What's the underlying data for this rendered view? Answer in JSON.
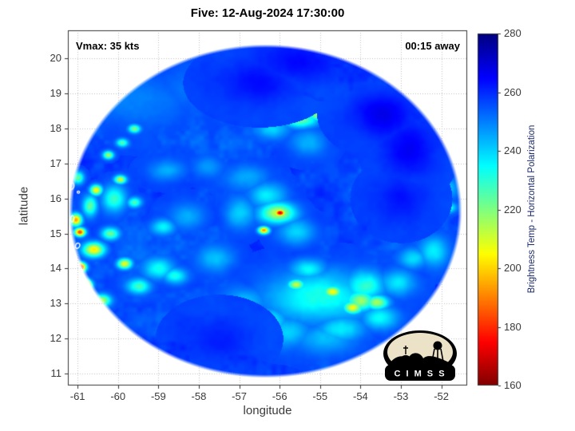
{
  "title": "Five: 12-Aug-2024 17:30:00",
  "annotations": {
    "vmax": "Vmax: 35 kts",
    "eta": "00:15 away"
  },
  "logo": {
    "text": "C I M S S"
  },
  "chart_data": {
    "type": "heatmap",
    "title": "Five: 12-Aug-2024 17:30:00",
    "xlabel": "longitude",
    "ylabel": "latitude",
    "x_ticks": [
      -61,
      -60,
      -59,
      -58,
      -57,
      -56,
      -55,
      -54,
      -53,
      -52
    ],
    "y_ticks": [
      11,
      12,
      13,
      14,
      15,
      16,
      17,
      18,
      19,
      20
    ],
    "x_range": [
      -61.24,
      -51.36
    ],
    "y_range": [
      10.66,
      20.8
    ],
    "grid": true,
    "colorbar": {
      "label": "Brightness Temp - Horizontal Polarization",
      "min": 160,
      "max": 280,
      "ticks": [
        160,
        180,
        200,
        220,
        240,
        260,
        280
      ],
      "colormap": "jet-reversed"
    },
    "swath": {
      "center_lon": -56.36,
      "center_lat": 15.65,
      "radius_x_deg": 4.86,
      "radius_y_deg": 4.76
    },
    "base_temp_k": 257,
    "noise": {
      "seed": 7,
      "amplitude": 7
    },
    "features": [
      [
        -60.95,
        14.05,
        0.1,
        0.09,
        168
      ],
      [
        -60.85,
        13.55,
        0.12,
        0.1,
        165
      ],
      [
        -61.05,
        13.3,
        0.08,
        0.08,
        182
      ],
      [
        -60.95,
        15.05,
        0.09,
        0.08,
        182
      ],
      [
        -61.05,
        15.4,
        0.1,
        0.12,
        198
      ],
      [
        -60.55,
        16.25,
        0.1,
        0.1,
        205
      ],
      [
        -60.25,
        17.25,
        0.09,
        0.08,
        215
      ],
      [
        -59.95,
        16.55,
        0.1,
        0.08,
        212
      ],
      [
        -60.6,
        14.55,
        0.18,
        0.14,
        200
      ],
      [
        -59.85,
        14.15,
        0.12,
        0.1,
        206
      ],
      [
        -60.2,
        15.0,
        0.15,
        0.12,
        220
      ],
      [
        -59.6,
        15.9,
        0.12,
        0.1,
        226
      ],
      [
        -60.4,
        13.1,
        0.15,
        0.12,
        216
      ],
      [
        -59.5,
        13.5,
        0.2,
        0.15,
        228
      ],
      [
        -59.0,
        14.0,
        0.25,
        0.2,
        233
      ],
      [
        -60.1,
        16.0,
        0.2,
        0.25,
        228
      ],
      [
        -60.7,
        15.8,
        0.12,
        0.2,
        224
      ],
      [
        -58.6,
        13.8,
        0.2,
        0.15,
        232
      ],
      [
        -58.9,
        15.2,
        0.2,
        0.15,
        236
      ],
      [
        -59.6,
        18.0,
        0.1,
        0.08,
        222
      ],
      [
        -59.9,
        17.6,
        0.1,
        0.08,
        226
      ],
      [
        -60.9,
        12.6,
        0.15,
        0.12,
        225
      ],
      [
        -61.0,
        16.6,
        0.1,
        0.12,
        218
      ],
      [
        -56.0,
        15.6,
        0.09,
        0.07,
        168
      ],
      [
        -56.05,
        15.6,
        0.3,
        0.2,
        212
      ],
      [
        -56.4,
        15.1,
        0.09,
        0.07,
        192
      ],
      [
        -56.3,
        16.1,
        0.3,
        0.25,
        236
      ],
      [
        -57.0,
        15.6,
        0.25,
        0.3,
        241
      ],
      [
        -55.6,
        15.05,
        0.3,
        0.25,
        239
      ],
      [
        -56.8,
        16.6,
        0.35,
        0.25,
        244
      ],
      [
        -52.1,
        15.75,
        0.22,
        0.1,
        182
      ],
      [
        -52.4,
        15.85,
        0.3,
        0.18,
        222
      ],
      [
        -52.0,
        16.3,
        0.25,
        0.2,
        236
      ],
      [
        -52.2,
        14.5,
        0.25,
        0.3,
        236
      ],
      [
        -52.6,
        17.0,
        0.3,
        0.25,
        243
      ],
      [
        -54.7,
        18.5,
        0.1,
        0.07,
        174
      ],
      [
        -54.95,
        18.4,
        0.25,
        0.12,
        212
      ],
      [
        -55.5,
        18.25,
        0.3,
        0.15,
        224
      ],
      [
        -56.2,
        18.0,
        0.3,
        0.2,
        239
      ],
      [
        -54.2,
        18.25,
        0.2,
        0.14,
        230
      ],
      [
        -53.85,
        17.9,
        0.25,
        0.2,
        241
      ],
      [
        -55.9,
        18.55,
        0.3,
        0.15,
        233
      ],
      [
        -55.3,
        17.6,
        0.3,
        0.25,
        243
      ],
      [
        -55.0,
        13.2,
        0.9,
        0.5,
        232
      ],
      [
        -54.7,
        13.35,
        0.15,
        0.11,
        206
      ],
      [
        -54.2,
        12.9,
        0.16,
        0.12,
        208
      ],
      [
        -55.6,
        13.55,
        0.14,
        0.1,
        212
      ],
      [
        -53.6,
        13.05,
        0.2,
        0.14,
        215
      ],
      [
        -56.3,
        12.5,
        0.3,
        0.25,
        233
      ],
      [
        -53.1,
        13.6,
        0.3,
        0.25,
        236
      ],
      [
        -52.7,
        14.3,
        0.25,
        0.2,
        239
      ],
      [
        -56.9,
        13.0,
        0.35,
        0.3,
        239
      ],
      [
        -55.8,
        12.2,
        0.4,
        0.3,
        241
      ],
      [
        -54.5,
        12.3,
        0.4,
        0.25,
        237
      ],
      [
        -53.9,
        13.5,
        0.35,
        0.3,
        229
      ],
      [
        -55.3,
        14.0,
        0.3,
        0.2,
        235
      ],
      [
        -54.9,
        12.0,
        0.5,
        0.3,
        243
      ],
      [
        -54.0,
        13.1,
        0.25,
        0.2,
        218
      ],
      [
        -53.5,
        12.6,
        0.3,
        0.22,
        234
      ],
      [
        -58.3,
        15.5,
        0.3,
        0.25,
        245
      ],
      [
        -57.6,
        14.3,
        0.3,
        0.25,
        243
      ],
      [
        -58.8,
        16.8,
        0.3,
        0.2,
        244
      ],
      [
        -57.8,
        16.9,
        0.25,
        0.2,
        247
      ],
      [
        -59.5,
        18.8,
        0.8,
        0.5,
        250
      ],
      [
        -58.0,
        19.2,
        0.7,
        0.5,
        251
      ],
      [
        -57.0,
        18.8,
        0.5,
        0.4,
        250
      ],
      [
        -53.5,
        18.4,
        0.5,
        0.4,
        268
      ],
      [
        -52.8,
        17.4,
        0.4,
        0.5,
        266
      ],
      [
        -55.5,
        19.9,
        0.7,
        0.4,
        265
      ],
      [
        -56.5,
        19.3,
        0.6,
        0.4,
        264
      ],
      [
        -53.0,
        16.0,
        0.4,
        0.4,
        263
      ],
      [
        -57.5,
        12.0,
        0.5,
        0.4,
        262
      ]
    ],
    "islands": [
      [
        -61.15,
        16.35,
        0.12,
        0.2,
        15
      ],
      [
        -60.98,
        16.18,
        0.06,
        0.06,
        0
      ],
      [
        -61.13,
        15.42,
        0.08,
        0.18,
        5
      ],
      [
        -61.0,
        14.65,
        0.1,
        0.16,
        25
      ],
      [
        -60.92,
        13.92,
        0.08,
        0.14,
        10
      ],
      [
        -61.05,
        13.2,
        0.06,
        0.11,
        5
      ],
      [
        -60.85,
        12.85,
        0.05,
        0.07,
        20
      ],
      [
        -60.55,
        11.25,
        0.16,
        0.06,
        20
      ]
    ]
  }
}
